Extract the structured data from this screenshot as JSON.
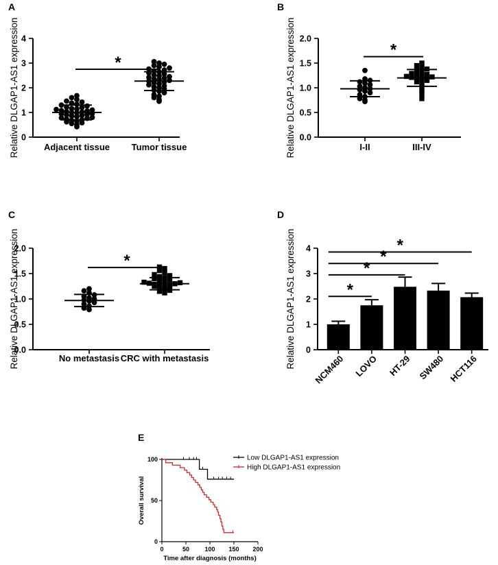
{
  "chart_data": [
    {
      "panel": "A",
      "type": "scatter",
      "ylabel": "Relative DLGAP1-AS1 expression",
      "ylim": [
        0,
        4
      ],
      "yticks": [
        "0",
        "1",
        "2",
        "3",
        "4"
      ],
      "categories": [
        "Adjacent tissue",
        "Tumor tissue"
      ],
      "series": [
        {
          "name": "Adjacent tissue",
          "mean": 1.0,
          "sd": 0.3,
          "values": [
            0.42,
            0.5,
            0.55,
            0.58,
            0.62,
            0.65,
            0.68,
            0.7,
            0.73,
            0.76,
            0.78,
            0.8,
            0.83,
            0.86,
            0.88,
            0.9,
            0.92,
            0.94,
            0.96,
            0.98,
            1.0,
            1.02,
            1.04,
            1.06,
            1.08,
            1.1,
            1.12,
            1.14,
            1.16,
            1.2,
            1.22,
            1.26,
            1.3,
            1.33,
            1.38,
            1.42,
            1.46,
            1.52,
            1.6,
            1.68
          ]
        },
        {
          "name": "Tumor tissue",
          "mean": 2.27,
          "sd": 0.38,
          "values": [
            1.45,
            1.52,
            1.6,
            1.66,
            1.72,
            1.8,
            1.86,
            1.9,
            1.95,
            2.0,
            2.04,
            2.08,
            2.12,
            2.16,
            2.2,
            2.24,
            2.27,
            2.3,
            2.33,
            2.36,
            2.39,
            2.42,
            2.45,
            2.48,
            2.52,
            2.56,
            2.6,
            2.64,
            2.68,
            2.72,
            2.76,
            2.8,
            2.85,
            2.9,
            2.95,
            3.0,
            3.06
          ]
        }
      ],
      "significance": [
        {
          "from": 0,
          "to": 1,
          "y": 2.75,
          "label": "*"
        }
      ]
    },
    {
      "panel": "B",
      "type": "scatter",
      "ylabel": "Relative DLGAP1-AS1 expression",
      "ylim": [
        0,
        2
      ],
      "yticks": [
        "0.0",
        "0.5",
        "1.0",
        "1.5",
        "2.0"
      ],
      "categories": [
        "I-II",
        "III-IV"
      ],
      "series": [
        {
          "name": "I-II",
          "mean": 0.98,
          "sd": 0.16,
          "values": [
            0.72,
            0.75,
            0.78,
            0.82,
            0.86,
            0.9,
            0.93,
            0.96,
            0.98,
            1.0,
            1.03,
            1.06,
            1.09,
            1.12,
            1.15,
            1.18,
            1.35
          ]
        },
        {
          "name": "III-IV",
          "mean": 1.2,
          "sd": 0.17,
          "values": [
            0.78,
            0.88,
            0.94,
            1.02,
            1.08,
            1.12,
            1.15,
            1.17,
            1.19,
            1.2,
            1.21,
            1.22,
            1.23,
            1.24,
            1.25,
            1.27,
            1.29,
            1.32,
            1.35,
            1.38,
            1.42,
            1.45,
            1.5
          ]
        }
      ],
      "significance": [
        {
          "from": 0,
          "to": 1,
          "y": 1.63,
          "label": "*"
        }
      ]
    },
    {
      "panel": "C",
      "type": "scatter",
      "ylabel": "Relative DLGAP1-AS1 expression",
      "ylim": [
        0,
        2
      ],
      "yticks": [
        "0.0",
        "0.5",
        "1.0",
        "1.5",
        "2.0"
      ],
      "categories": [
        "No metastasis",
        "CRC with metastasis"
      ],
      "series": [
        {
          "name": "No metastasis",
          "mean": 0.97,
          "sd": 0.12,
          "values": [
            0.79,
            0.82,
            0.86,
            0.9,
            0.93,
            0.96,
            0.98,
            1.0,
            1.02,
            1.05,
            1.08,
            1.12,
            1.16,
            1.2
          ]
        },
        {
          "name": "CRC with metastasis",
          "mean": 1.3,
          "sd": 0.12,
          "values": [
            1.12,
            1.15,
            1.17,
            1.19,
            1.21,
            1.23,
            1.25,
            1.26,
            1.27,
            1.28,
            1.29,
            1.3,
            1.31,
            1.32,
            1.33,
            1.34,
            1.36,
            1.38,
            1.4,
            1.42,
            1.44,
            1.46,
            1.48,
            1.52,
            1.56,
            1.6,
            1.63
          ]
        }
      ],
      "significance": [
        {
          "from": 0,
          "to": 1,
          "y": 1.62,
          "label": "*"
        }
      ]
    },
    {
      "panel": "D",
      "type": "bar",
      "ylabel": "Relative DLGAP1-AS1 expression",
      "ylim": [
        0,
        4
      ],
      "yticks": [
        "0",
        "1",
        "2",
        "3",
        "4"
      ],
      "categories": [
        "NCM460",
        "LOVO",
        "HT-29",
        "SW480",
        "HCT116"
      ],
      "values": [
        1.0,
        1.75,
        2.48,
        2.33,
        2.07
      ],
      "errors": [
        0.12,
        0.22,
        0.38,
        0.28,
        0.16
      ],
      "significance": [
        {
          "from": 0,
          "to": 1,
          "y": 2.1,
          "label": "*"
        },
        {
          "from": 0,
          "to": 2,
          "y": 2.95,
          "label": "*"
        },
        {
          "from": 0,
          "to": 3,
          "y": 3.4,
          "label": "*"
        },
        {
          "from": 0,
          "to": 4,
          "y": 3.85,
          "label": "*"
        }
      ]
    },
    {
      "panel": "E",
      "type": "line",
      "xlabel": "Time after diagnosis (months)",
      "ylabel": "Overall survival",
      "xlim": [
        0,
        200
      ],
      "ylim": [
        0,
        100
      ],
      "xticks": [
        "0",
        "50",
        "100",
        "150",
        "200"
      ],
      "yticks": [
        "0",
        "50",
        "100"
      ],
      "legend_position": "top-right",
      "series": [
        {
          "name": "Low DLGAP1-AS1 expression",
          "color": "#000000",
          "steps": [
            [
              0,
              100
            ],
            [
              78,
              100
            ],
            [
              78,
              88
            ],
            [
              95,
              88
            ],
            [
              95,
              76
            ],
            [
              150,
              76
            ]
          ],
          "censor_times": [
            45,
            57,
            66,
            72,
            85,
            108,
            118,
            126,
            135,
            143
          ]
        },
        {
          "name": "High DLGAP1-AS1 expression",
          "color": "#d62728",
          "steps": [
            [
              0,
              100
            ],
            [
              8,
              100
            ],
            [
              8,
              96
            ],
            [
              22,
              96
            ],
            [
              22,
              93
            ],
            [
              38,
              93
            ],
            [
              38,
              90
            ],
            [
              47,
              90
            ],
            [
              47,
              87
            ],
            [
              52,
              87
            ],
            [
              52,
              84
            ],
            [
              58,
              84
            ],
            [
              58,
              81
            ],
            [
              62,
              81
            ],
            [
              62,
              78
            ],
            [
              66,
              78
            ],
            [
              66,
              75
            ],
            [
              70,
              75
            ],
            [
              70,
              72
            ],
            [
              75,
              72
            ],
            [
              75,
              69
            ],
            [
              79,
              69
            ],
            [
              79,
              66
            ],
            [
              82,
              66
            ],
            [
              82,
              63
            ],
            [
              85,
              63
            ],
            [
              85,
              60
            ],
            [
              88,
              60
            ],
            [
              88,
              57
            ],
            [
              93,
              57
            ],
            [
              93,
              54
            ],
            [
              98,
              54
            ],
            [
              98,
              51
            ],
            [
              102,
              51
            ],
            [
              102,
              48
            ],
            [
              107,
              48
            ],
            [
              107,
              45
            ],
            [
              110,
              45
            ],
            [
              110,
              42
            ],
            [
              114,
              42
            ],
            [
              114,
              39
            ],
            [
              116,
              39
            ],
            [
              116,
              36
            ],
            [
              118,
              36
            ],
            [
              118,
              32
            ],
            [
              121,
              32
            ],
            [
              121,
              28
            ],
            [
              123,
              28
            ],
            [
              123,
              24
            ],
            [
              125,
              24
            ],
            [
              125,
              19
            ],
            [
              127,
              19
            ],
            [
              127,
              15
            ],
            [
              129,
              15
            ],
            [
              129,
              11
            ],
            [
              150,
              11
            ]
          ],
          "censor_times": [
            148
          ]
        }
      ]
    }
  ]
}
